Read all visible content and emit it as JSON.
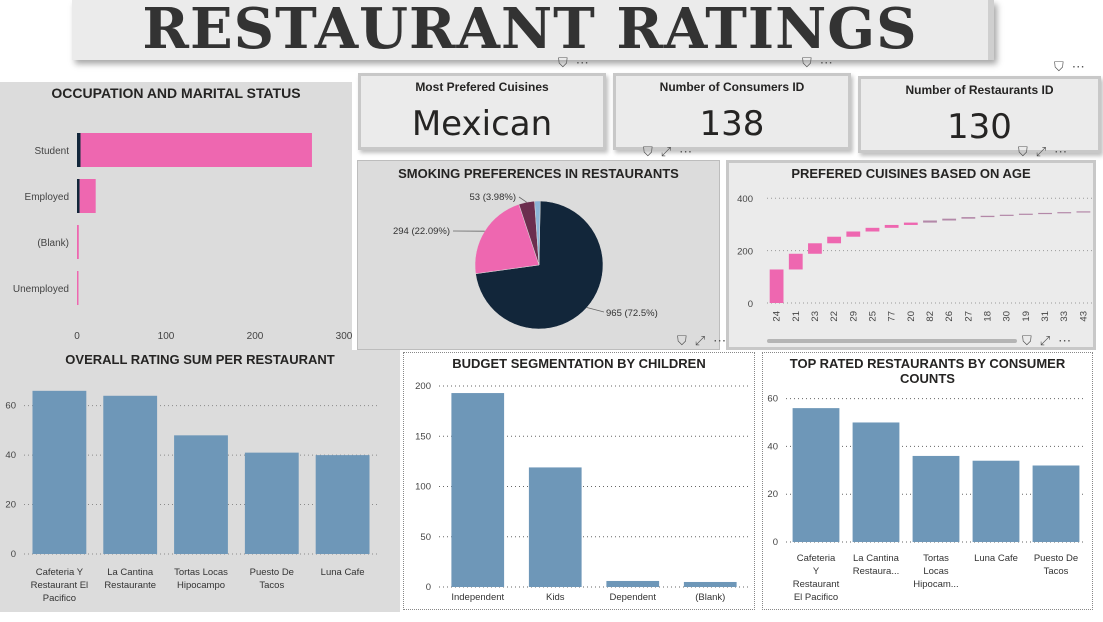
{
  "title": "RESTAURANT RATINGS",
  "cards": [
    {
      "label": "Most Prefered Cuisines",
      "value": "Mexican"
    },
    {
      "label": "Number of Consumers ID",
      "value": "138"
    },
    {
      "label": "Number of Restaurants ID",
      "value": "130"
    }
  ],
  "panels": {
    "occupation": {
      "title": "OCCUPATION AND MARITAL STATUS"
    },
    "smoking": {
      "title": "SMOKING PREFERENCES IN RESTAURANTS"
    },
    "age": {
      "title": "PREFERED CUISINES BASED ON AGE"
    },
    "rating": {
      "title": "OVERALL RATING SUM PER RESTAURANT"
    },
    "budget": {
      "title": "BUDGET SEGMENTATION BY CHILDREN"
    },
    "top": {
      "title": "TOP RATED RESTAURANTS BY CONSUMER COUNTS"
    }
  },
  "colors": {
    "pink": "#ee67b0",
    "navy": "#12263a",
    "maroon": "#6b2e4e",
    "steel": "#6e97b8",
    "lightblue": "#8cb4d6"
  },
  "chart_data": [
    {
      "id": "occupation",
      "type": "bar",
      "orientation": "horizontal",
      "categories": [
        "Student",
        "Employed",
        "(Blank)",
        "Unemployed"
      ],
      "series": [
        {
          "values": [
            4,
            3,
            0,
            0
          ]
        },
        {
          "values": [
            260,
            18,
            2,
            1
          ]
        }
      ],
      "xticks": [
        "0",
        "100",
        "200",
        "300"
      ],
      "xlim": [
        0,
        300
      ]
    },
    {
      "id": "smoking",
      "type": "pie",
      "slices": [
        {
          "value": 965,
          "label": "965 (72.5%)"
        },
        {
          "value": 294,
          "label": "294 (22.09%)"
        },
        {
          "value": 53,
          "label": "53 (3.98%)"
        },
        {
          "value": 19,
          "label": ""
        }
      ]
    },
    {
      "id": "age",
      "type": "bar",
      "categories": [
        "24",
        "21",
        "23",
        "22",
        "29",
        "25",
        "77",
        "20",
        "82",
        "26",
        "27",
        "18",
        "30",
        "19",
        "31",
        "33",
        "43"
      ],
      "values": [
        128,
        60,
        40,
        25,
        20,
        14,
        11,
        9,
        8,
        7,
        6,
        5,
        4,
        4,
        3,
        3,
        3
      ],
      "yticks": [
        "0",
        "200",
        "400"
      ],
      "ylim": [
        0,
        420
      ]
    },
    {
      "id": "rating",
      "type": "bar",
      "categories": [
        [
          "Cafeteria Y",
          "Restaurant El",
          "Pacifico"
        ],
        [
          "La Cantina",
          "Restaurante"
        ],
        [
          "Tortas Locas",
          "Hipocampo"
        ],
        [
          "Puesto De",
          "Tacos"
        ],
        [
          "Luna Cafe"
        ]
      ],
      "values": [
        66,
        64,
        48,
        41,
        40
      ],
      "yticks": [
        "0",
        "20",
        "40",
        "60"
      ],
      "ylim": [
        0,
        72
      ]
    },
    {
      "id": "budget",
      "type": "bar",
      "categories": [
        [
          "Independent"
        ],
        [
          "Kids"
        ],
        [
          "Dependent"
        ],
        [
          "(Blank)"
        ]
      ],
      "values": [
        193,
        119,
        6,
        5
      ],
      "yticks": [
        "0",
        "50",
        "100",
        "150",
        "200"
      ],
      "ylim": [
        0,
        205
      ]
    },
    {
      "id": "top",
      "type": "bar",
      "categories": [
        [
          "Cafeteria",
          "Y",
          "Restaurant",
          "El Pacifico"
        ],
        [
          "La Cantina",
          "Restaura..."
        ],
        [
          "Tortas",
          "Locas",
          "Hipocam..."
        ],
        [
          "Luna Cafe"
        ],
        [
          "Puesto De",
          "Tacos"
        ]
      ],
      "values": [
        56,
        50,
        36,
        34,
        32
      ],
      "yticks": [
        "0",
        "20",
        "40",
        "60"
      ],
      "ylim": [
        0,
        64
      ]
    }
  ]
}
